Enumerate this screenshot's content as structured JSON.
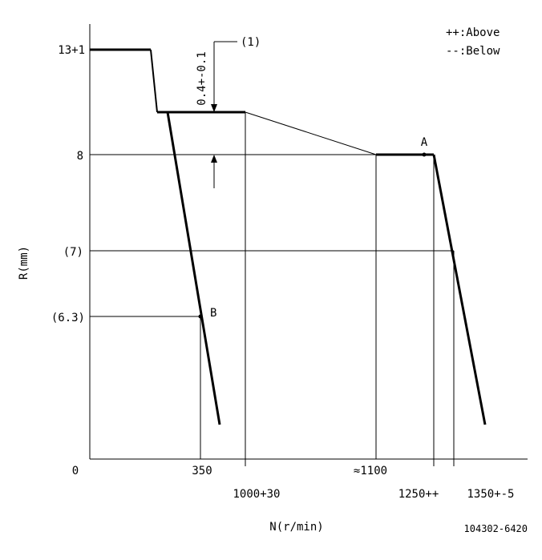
{
  "legend": {
    "above": "++:Above",
    "below": "--:Below"
  },
  "axes": {
    "y_title": "R(mm)",
    "x_title": "N(r/min)",
    "origin": "0",
    "y_ticks": [
      "13+1",
      "8",
      "(7)",
      "(6.3)"
    ],
    "x_ticks": [
      "350",
      "1000+30",
      "≈1100",
      "1250++",
      "1350+-5"
    ]
  },
  "annotations": {
    "callout": "(1)",
    "dimension": "0.4+-0.1",
    "point_a": "A",
    "point_b": "B"
  },
  "drawing_number": "104302-6420"
}
